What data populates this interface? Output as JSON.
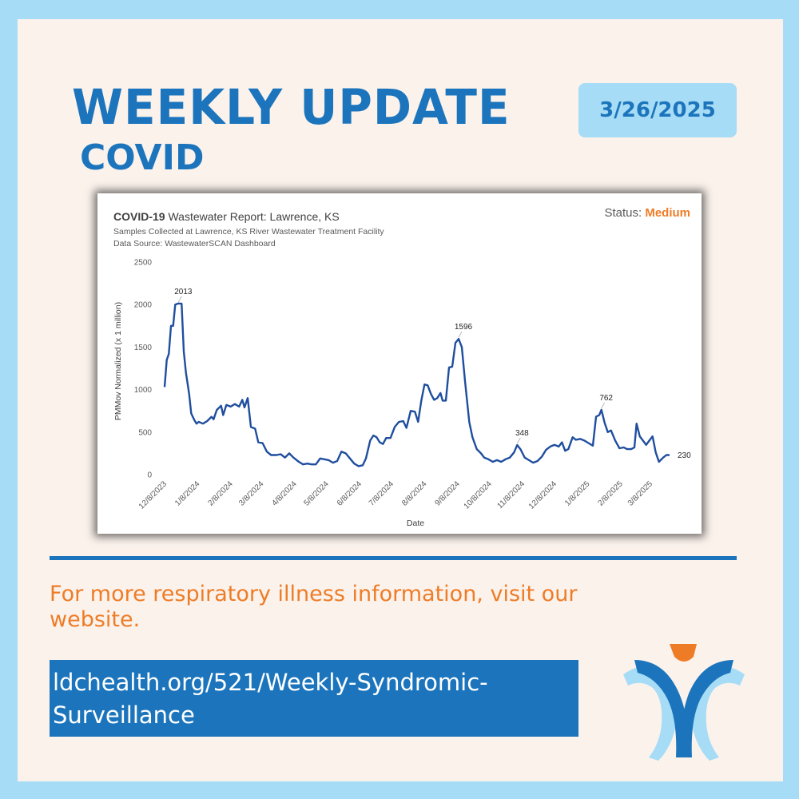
{
  "header": {
    "title": "WEEKLY UPDATE",
    "subtitle": "COVID",
    "date": "3/26/2025"
  },
  "chart_data": {
    "type": "line",
    "title_bold": "COVID-19",
    "title_rest": " Wastewater Report: Lawrence, KS",
    "subtitle": "Samples Collected at Lawrence, KS River Wastewater Treatment Facility",
    "source": "Data Source: WastewaterSCAN Dashboard",
    "status_label": "Status: ",
    "status_value": "Medium",
    "status_color": "#ee7c27",
    "xlabel": "Date",
    "ylabel": "PMMov Normalized (x 1 million)",
    "ylim": [
      0,
      2500
    ],
    "yticks": [
      0,
      500,
      1000,
      1500,
      2000,
      2500
    ],
    "xticks": [
      "12/8/2023",
      "1/8/2024",
      "2/8/2024",
      "3/8/2024",
      "4/8/2024",
      "5/8/2024",
      "6/8/2024",
      "7/8/2024",
      "8/8/2024",
      "9/8/2024",
      "10/8/2024",
      "11/8/2024",
      "12/8/2024",
      "1/8/2025",
      "2/8/2025",
      "3/8/2025"
    ],
    "xrange": [
      "2023-12-08",
      "2025-03-26"
    ],
    "line_color": "#1f4e9f",
    "grid": false,
    "legend": "none",
    "series": [
      {
        "points": [
          [
            "2023-12-08",
            1030
          ],
          [
            "2023-12-10",
            1350
          ],
          [
            "2023-12-12",
            1420
          ],
          [
            "2023-12-14",
            1750
          ],
          [
            "2023-12-16",
            1750
          ],
          [
            "2023-12-18",
            2000
          ],
          [
            "2023-12-21",
            2013
          ],
          [
            "2023-12-24",
            2010
          ],
          [
            "2023-12-26",
            1450
          ],
          [
            "2023-12-28",
            1200
          ],
          [
            "2023-12-31",
            950
          ],
          [
            "2024-01-02",
            720
          ],
          [
            "2024-01-05",
            640
          ],
          [
            "2024-01-07",
            600
          ],
          [
            "2024-01-09",
            620
          ],
          [
            "2024-01-13",
            600
          ],
          [
            "2024-01-17",
            630
          ],
          [
            "2024-01-21",
            680
          ],
          [
            "2024-01-23",
            650
          ],
          [
            "2024-01-26",
            760
          ],
          [
            "2024-01-30",
            810
          ],
          [
            "2024-02-01",
            700
          ],
          [
            "2024-02-04",
            820
          ],
          [
            "2024-02-08",
            800
          ],
          [
            "2024-02-12",
            830
          ],
          [
            "2024-02-16",
            800
          ],
          [
            "2024-02-19",
            880
          ],
          [
            "2024-02-21",
            790
          ],
          [
            "2024-02-24",
            900
          ],
          [
            "2024-02-27",
            560
          ],
          [
            "2024-03-02",
            540
          ],
          [
            "2024-03-05",
            380
          ],
          [
            "2024-03-09",
            370
          ],
          [
            "2024-03-13",
            270
          ],
          [
            "2024-03-17",
            230
          ],
          [
            "2024-03-22",
            230
          ],
          [
            "2024-03-26",
            240
          ],
          [
            "2024-03-30",
            200
          ],
          [
            "2024-04-03",
            250
          ],
          [
            "2024-04-07",
            200
          ],
          [
            "2024-04-12",
            150
          ],
          [
            "2024-04-16",
            120
          ],
          [
            "2024-04-20",
            130
          ],
          [
            "2024-04-24",
            120
          ],
          [
            "2024-04-28",
            120
          ],
          [
            "2024-05-02",
            190
          ],
          [
            "2024-05-06",
            180
          ],
          [
            "2024-05-10",
            170
          ],
          [
            "2024-05-14",
            140
          ],
          [
            "2024-05-18",
            160
          ],
          [
            "2024-05-22",
            270
          ],
          [
            "2024-05-26",
            250
          ],
          [
            "2024-05-30",
            190
          ],
          [
            "2024-06-03",
            130
          ],
          [
            "2024-06-07",
            100
          ],
          [
            "2024-06-11",
            110
          ],
          [
            "2024-06-14",
            190
          ],
          [
            "2024-06-18",
            400
          ],
          [
            "2024-06-21",
            460
          ],
          [
            "2024-06-24",
            440
          ],
          [
            "2024-06-27",
            380
          ],
          [
            "2024-06-30",
            360
          ],
          [
            "2024-07-03",
            430
          ],
          [
            "2024-07-07",
            430
          ],
          [
            "2024-07-11",
            560
          ],
          [
            "2024-07-15",
            620
          ],
          [
            "2024-07-19",
            630
          ],
          [
            "2024-07-22",
            550
          ],
          [
            "2024-07-26",
            750
          ],
          [
            "2024-07-30",
            740
          ],
          [
            "2024-08-02",
            620
          ],
          [
            "2024-08-05",
            870
          ],
          [
            "2024-08-08",
            1060
          ],
          [
            "2024-08-11",
            1050
          ],
          [
            "2024-08-14",
            950
          ],
          [
            "2024-08-17",
            880
          ],
          [
            "2024-08-20",
            900
          ],
          [
            "2024-08-23",
            960
          ],
          [
            "2024-08-25",
            870
          ],
          [
            "2024-08-28",
            870
          ],
          [
            "2024-08-31",
            1260
          ],
          [
            "2024-09-03",
            1270
          ],
          [
            "2024-09-06",
            1550
          ],
          [
            "2024-09-09",
            1596
          ],
          [
            "2024-09-12",
            1500
          ],
          [
            "2024-09-15",
            1100
          ],
          [
            "2024-09-19",
            620
          ],
          [
            "2024-09-22",
            440
          ],
          [
            "2024-09-26",
            300
          ],
          [
            "2024-09-30",
            250
          ],
          [
            "2024-10-03",
            200
          ],
          [
            "2024-10-07",
            180
          ],
          [
            "2024-10-11",
            150
          ],
          [
            "2024-10-15",
            170
          ],
          [
            "2024-10-19",
            150
          ],
          [
            "2024-10-23",
            180
          ],
          [
            "2024-10-27",
            200
          ],
          [
            "2024-10-31",
            260
          ],
          [
            "2024-11-03",
            348
          ],
          [
            "2024-11-06",
            300
          ],
          [
            "2024-11-10",
            200
          ],
          [
            "2024-11-14",
            170
          ],
          [
            "2024-11-18",
            140
          ],
          [
            "2024-11-22",
            160
          ],
          [
            "2024-11-26",
            210
          ],
          [
            "2024-11-30",
            290
          ],
          [
            "2024-12-04",
            330
          ],
          [
            "2024-12-08",
            350
          ],
          [
            "2024-12-12",
            330
          ],
          [
            "2024-12-15",
            380
          ],
          [
            "2024-12-18",
            280
          ],
          [
            "2024-12-21",
            300
          ],
          [
            "2024-12-25",
            440
          ],
          [
            "2024-12-28",
            410
          ],
          [
            "2025-01-01",
            420
          ],
          [
            "2025-01-05",
            400
          ],
          [
            "2025-01-09",
            370
          ],
          [
            "2025-01-13",
            340
          ],
          [
            "2025-01-16",
            680
          ],
          [
            "2025-01-19",
            700
          ],
          [
            "2025-01-21",
            762
          ],
          [
            "2025-01-24",
            610
          ],
          [
            "2025-01-27",
            500
          ],
          [
            "2025-01-30",
            520
          ],
          [
            "2025-02-03",
            400
          ],
          [
            "2025-02-07",
            310
          ],
          [
            "2025-02-11",
            320
          ],
          [
            "2025-02-14",
            300
          ],
          [
            "2025-02-18",
            300
          ],
          [
            "2025-02-21",
            320
          ],
          [
            "2025-02-23",
            600
          ],
          [
            "2025-02-26",
            450
          ],
          [
            "2025-03-01",
            400
          ],
          [
            "2025-03-04",
            350
          ],
          [
            "2025-03-07",
            400
          ],
          [
            "2025-03-10",
            450
          ],
          [
            "2025-03-13",
            260
          ],
          [
            "2025-03-16",
            150
          ],
          [
            "2025-03-20",
            200
          ],
          [
            "2025-03-23",
            230
          ],
          [
            "2025-03-26",
            230
          ]
        ]
      }
    ],
    "annotations": [
      {
        "date": "2023-12-21",
        "value": 2013,
        "label": "2013",
        "pos": "above"
      },
      {
        "date": "2024-09-09",
        "value": 1596,
        "label": "1596",
        "pos": "above"
      },
      {
        "date": "2024-11-03",
        "value": 348,
        "label": "348",
        "pos": "above"
      },
      {
        "date": "2025-01-21",
        "value": 762,
        "label": "762",
        "pos": "above"
      },
      {
        "date": "2025-03-26",
        "value": 230,
        "label": "230",
        "pos": "right"
      }
    ]
  },
  "footer": {
    "more_info": "For more respiratory illness information, visit our website.",
    "url_line1": "ldchealth.org/521/Weekly-Syndromic-",
    "url_line2": "Surveillance"
  }
}
